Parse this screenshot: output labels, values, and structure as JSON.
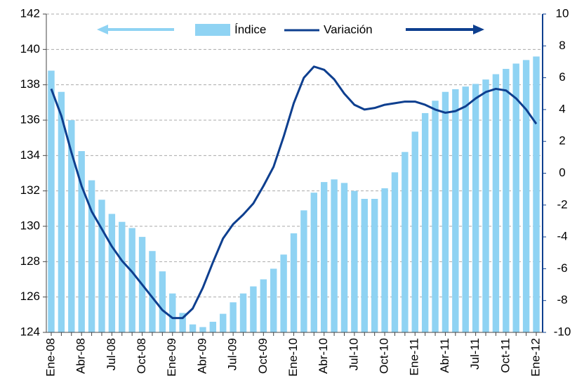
{
  "chart_data": {
    "type": "bar-line",
    "categories": [
      "Ene-08",
      null,
      null,
      "Abr-08",
      null,
      null,
      "Jul-08",
      null,
      null,
      "Oct-08",
      null,
      null,
      "Ene-09",
      null,
      null,
      "Abr-09",
      null,
      null,
      "Jul-09",
      null,
      null,
      "Oct-09",
      null,
      null,
      "Ene-10",
      null,
      null,
      "Abr-10",
      null,
      null,
      "Jul-10",
      null,
      null,
      "Oct-10",
      null,
      null,
      "Ene-11",
      null,
      null,
      "Abr-11",
      null,
      null,
      "Jul-11",
      null,
      null,
      "Oct-11",
      null,
      null,
      "Ene-12"
    ],
    "series": [
      {
        "name": "Índice",
        "type": "bar",
        "color": "#8fd3f3",
        "values": [
          138.8,
          137.6,
          136.0,
          134.25,
          132.6,
          131.5,
          130.7,
          130.25,
          129.9,
          129.4,
          128.6,
          127.45,
          126.2,
          125.1,
          124.45,
          124.3,
          124.6,
          125.05,
          125.7,
          126.2,
          126.6,
          127.0,
          127.6,
          128.4,
          129.6,
          130.9,
          131.9,
          132.5,
          132.65,
          132.45,
          132.0,
          131.55,
          131.55,
          132.15,
          133.05,
          134.2,
          135.35,
          136.4,
          137.1,
          137.6,
          137.75,
          137.9,
          138.05,
          138.3,
          138.6,
          138.9,
          139.2,
          139.4,
          139.6
        ]
      },
      {
        "name": "Variación",
        "type": "line",
        "axis": "y2",
        "color": "#0e3f8f",
        "values": [
          5.3,
          3.6,
          1.3,
          -0.8,
          -2.4,
          -3.5,
          -4.6,
          -5.5,
          -6.2,
          -7.0,
          -7.8,
          -8.6,
          -9.1,
          -9.1,
          -8.5,
          -7.2,
          -5.6,
          -4.1,
          -3.2,
          -2.6,
          -1.9,
          -0.8,
          0.4,
          2.3,
          4.4,
          6.0,
          6.7,
          6.5,
          5.9,
          5.0,
          4.3,
          4.0,
          4.1,
          4.3,
          4.4,
          4.5,
          4.5,
          4.3,
          4.0,
          3.8,
          3.9,
          4.2,
          4.7,
          5.1,
          5.3,
          5.2,
          4.7,
          4.0,
          3.1
        ]
      }
    ],
    "ylim": [
      124,
      142
    ],
    "yticks": [
      124,
      126,
      128,
      130,
      132,
      134,
      136,
      138,
      140,
      142
    ],
    "y2lim": [
      -10,
      10
    ],
    "y2ticks": [
      -10,
      -8,
      -6,
      -4,
      -2,
      0,
      2,
      4,
      6,
      8,
      10
    ],
    "grid": true
  }
}
